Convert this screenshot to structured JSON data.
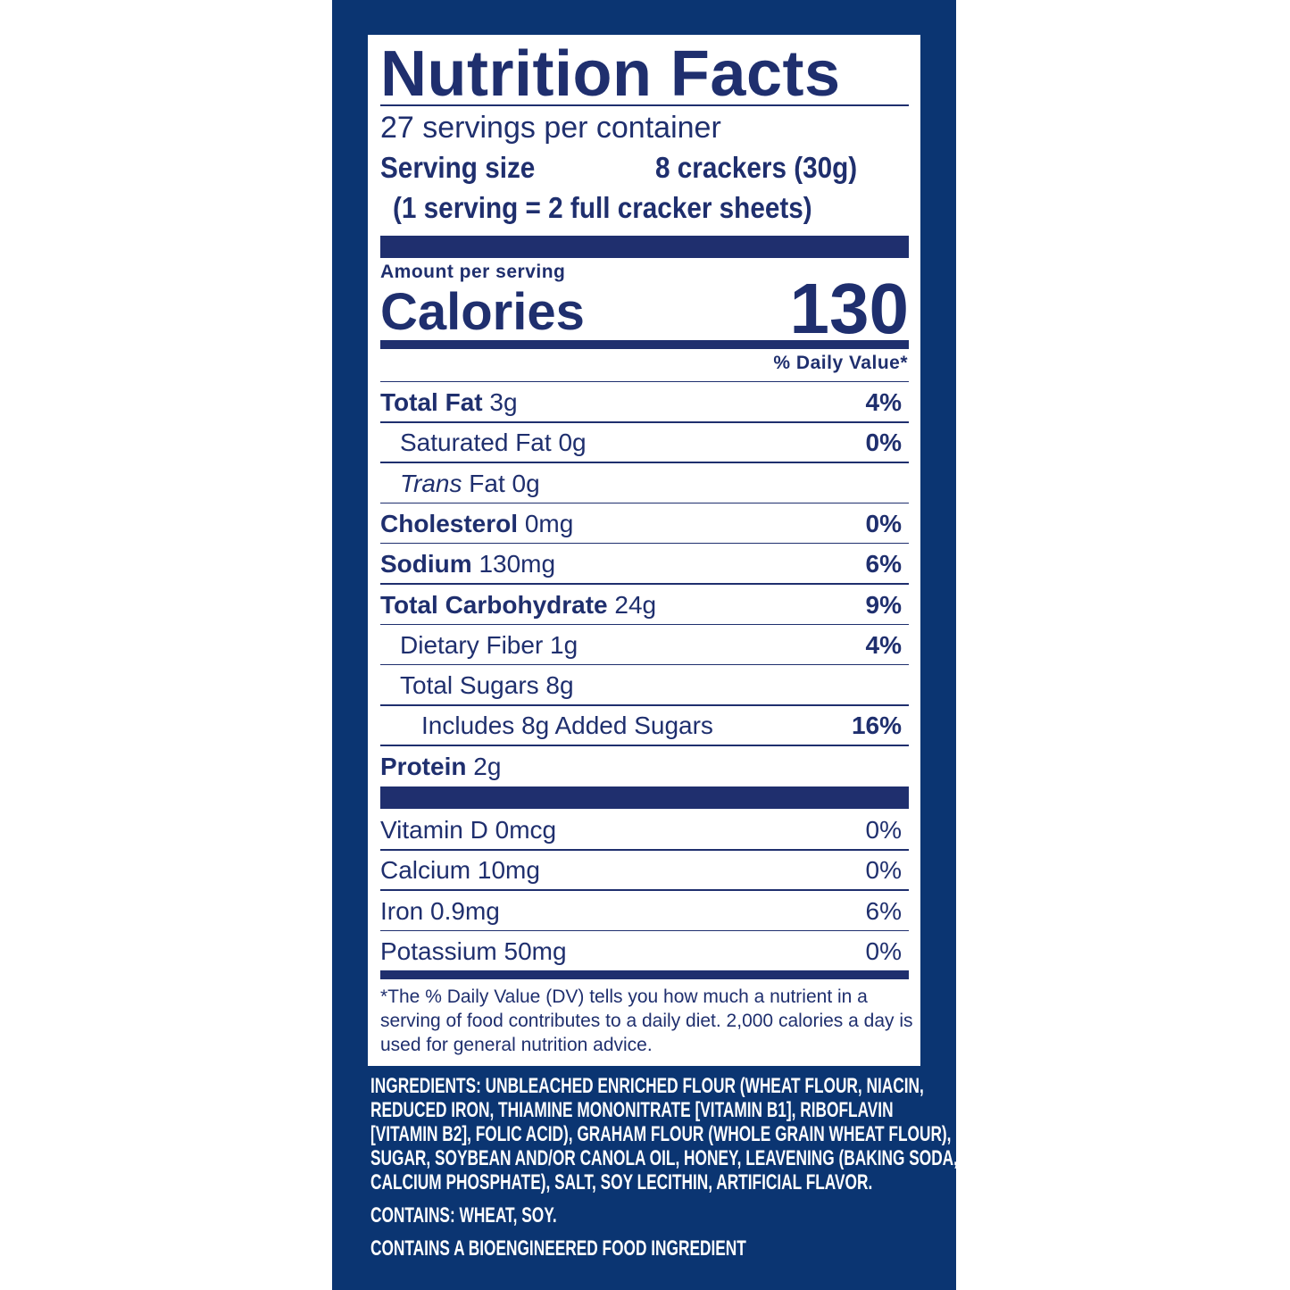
{
  "title": "Nutrition Facts",
  "servings_per_container": "27 servings per container",
  "serving_size_label": "Serving size",
  "serving_size_value": "8 crackers (30g)",
  "serving_note": "(1 serving = 2 full cracker sheets)",
  "amount_per_serving": "Amount per serving",
  "calories_label": "Calories",
  "calories_value": "130",
  "daily_value_header": "% Daily Value*",
  "nutrients": [
    {
      "name": "Total Fat",
      "amount": "3g",
      "dv": "4%"
    },
    {
      "name": "Saturated Fat",
      "amount": "0g",
      "dv": "0%"
    },
    {
      "name": "Trans",
      "name_rest": "Fat",
      "amount": "0g",
      "dv": ""
    },
    {
      "name": "Cholesterol",
      "amount": "0mg",
      "dv": "0%"
    },
    {
      "name": "Sodium",
      "amount": "130mg",
      "dv": "6%"
    },
    {
      "name": "Total Carbohydrate",
      "amount": "24g",
      "dv": "9%"
    },
    {
      "name": "Dietary Fiber",
      "amount": "1g",
      "dv": "4%"
    },
    {
      "name": "Total Sugars",
      "amount": "8g",
      "dv": ""
    },
    {
      "name": "Includes 8g Added Sugars",
      "amount": "",
      "dv": "16%"
    },
    {
      "name": "Protein",
      "amount": "2g",
      "dv": ""
    }
  ],
  "vitamins": [
    {
      "name": "Vitamin D 0mcg",
      "dv": "0%"
    },
    {
      "name": "Calcium 10mg",
      "dv": "0%"
    },
    {
      "name": "Iron 0.9mg",
      "dv": "6%"
    },
    {
      "name": "Potassium 50mg",
      "dv": "0%"
    }
  ],
  "footnote": "*The % Daily Value (DV) tells you how much a nutrient in a serving of food contributes to a daily diet. 2,000 calories a day is used for general nutrition advice.",
  "ingredients_lines": [
    "INGREDIENTS: UNBLEACHED ENRICHED FLOUR (WHEAT FLOUR, NIACIN,",
    "REDUCED IRON, THIAMINE MONONITRATE [VITAMIN B1], RIBOFLAVIN",
    "[VITAMIN B2], FOLIC ACID), GRAHAM FLOUR (WHOLE GRAIN WHEAT FLOUR),",
    "SUGAR, SOYBEAN AND/OR CANOLA OIL, HONEY, LEAVENING (BAKING SODA,",
    "CALCIUM PHOSPHATE), SALT, SOY LECITHIN, ARTIFICIAL FLAVOR."
  ],
  "contains": "CONTAINS: WHEAT, SOY.",
  "bioengineered": "CONTAINS A BIOENGINEERED FOOD INGREDIENT",
  "colors": {
    "panel": "#0b3572",
    "text": "#1f2f6e",
    "label": "#ffffff"
  }
}
